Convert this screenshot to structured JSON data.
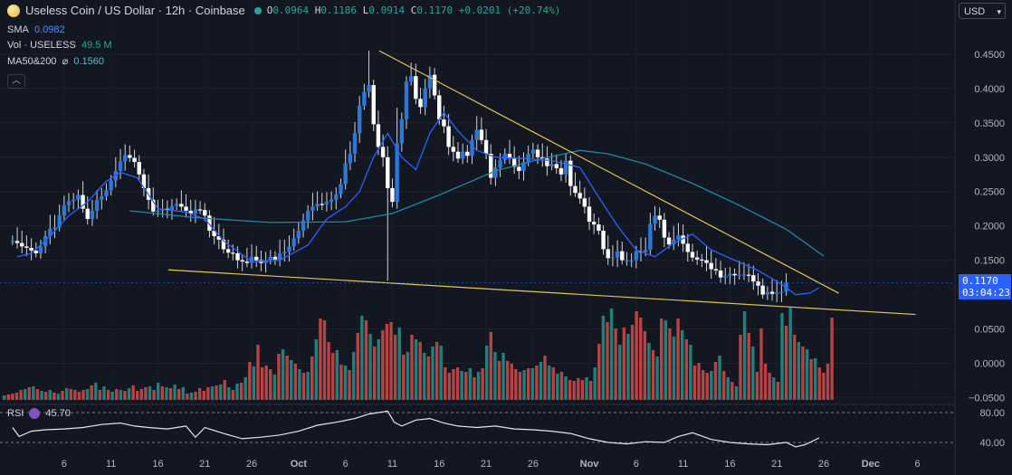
{
  "header": {
    "symbol": "Useless Coin / US Dollar · 12h · Coinbase",
    "o_label": "O",
    "o": "0.0964",
    "h_label": "H",
    "h": "0.1186",
    "l_label": "L",
    "l": "0.0914",
    "c_label": "C",
    "c": "0.1170",
    "change": "+0.0201 (+20.74%)"
  },
  "indicators": {
    "sma_label": "SMA",
    "sma_value": "0.0982",
    "vol_label": "Vol · USELESS",
    "vol_value": "49.5 M",
    "ma_label": "MA50&200",
    "ma_sym": "⌀",
    "ma_value": "0.1560",
    "collapse_icon": "chevron-up-icon"
  },
  "currency": "USD",
  "last_price": {
    "price": "0.1170",
    "countdown": "03:04:23"
  },
  "rsi": {
    "label": "RSI",
    "value": "45.70",
    "ticks": [
      "80.00",
      "40.00"
    ]
  },
  "colors": {
    "up": "#26a69a",
    "down": "#ef5350",
    "candle_body": "#ffffff",
    "sma": "#2962ff",
    "ma": "#1e88a8",
    "trendline": "#e3c74a",
    "background": "#131722"
  },
  "chart_data": {
    "type": "candlestick",
    "title": "Useless Coin / US Dollar · 12h · Coinbase",
    "ylim": [
      -0.05,
      0.475
    ],
    "y_ticks": [
      "0.4500",
      "0.4000",
      "0.3500",
      "0.3000",
      "0.2500",
      "0.2000",
      "0.1500",
      "0.0500",
      "0.0000",
      "−0.0500"
    ],
    "x_ticks": [
      "6",
      "11",
      "16",
      "21",
      "26",
      "Oct",
      "6",
      "11",
      "16",
      "21",
      "26",
      "Nov",
      "6",
      "11",
      "16",
      "21",
      "26",
      "Dec",
      "6"
    ],
    "x_tick_days": [
      6,
      11,
      16,
      21,
      26,
      31,
      36,
      41,
      46,
      51,
      56,
      62,
      67,
      72,
      77,
      82,
      87,
      92,
      97
    ],
    "note_x": "x = days since Sep 1",
    "candle_interval_days": 0.5,
    "close": [
      0.178,
      0.175,
      0.17,
      0.168,
      0.164,
      0.16,
      0.17,
      0.185,
      0.196,
      0.198,
      0.215,
      0.23,
      0.236,
      0.238,
      0.245,
      0.225,
      0.21,
      0.222,
      0.238,
      0.243,
      0.252,
      0.266,
      0.28,
      0.294,
      0.303,
      0.299,
      0.293,
      0.275,
      0.255,
      0.238,
      0.221,
      0.222,
      0.225,
      0.223,
      0.229,
      0.232,
      0.228,
      0.222,
      0.218,
      0.224,
      0.223,
      0.215,
      0.193,
      0.185,
      0.18,
      0.166,
      0.161,
      0.16,
      0.15,
      0.148,
      0.146,
      0.155,
      0.15,
      0.146,
      0.15,
      0.155,
      0.151,
      0.16,
      0.162,
      0.17,
      0.182,
      0.193,
      0.208,
      0.222,
      0.228,
      0.232,
      0.231,
      0.235,
      0.238,
      0.246,
      0.261,
      0.291,
      0.305,
      0.335,
      0.375,
      0.395,
      0.405,
      0.348,
      0.315,
      0.3,
      0.255,
      0.235,
      0.32,
      0.355,
      0.41,
      0.418,
      0.385,
      0.373,
      0.4,
      0.42,
      0.39,
      0.355,
      0.345,
      0.315,
      0.308,
      0.298,
      0.308,
      0.302,
      0.325,
      0.34,
      0.325,
      0.305,
      0.27,
      0.285,
      0.296,
      0.305,
      0.298,
      0.286,
      0.28,
      0.293,
      0.305,
      0.311,
      0.3,
      0.298,
      0.287,
      0.29,
      0.284,
      0.275,
      0.295,
      0.258,
      0.248,
      0.24,
      0.228,
      0.206,
      0.202,
      0.193,
      0.166,
      0.153,
      0.154,
      0.163,
      0.15,
      0.15,
      0.15,
      0.163,
      0.162,
      0.165,
      0.203,
      0.215,
      0.209,
      0.183,
      0.173,
      0.18,
      0.186,
      0.174,
      0.162,
      0.154,
      0.151,
      0.15,
      0.146,
      0.137,
      0.135,
      0.125,
      0.127,
      0.13,
      0.128,
      0.129,
      0.129,
      0.128,
      0.119,
      0.113,
      0.1,
      0.104,
      0.101,
      0.103,
      0.104,
      0.117
    ],
    "sma_series": [
      {
        "x": 1.0,
        "y": 0.155
      },
      {
        "x": 2.5,
        "y": 0.16
      },
      {
        "x": 4.5,
        "y": 0.185
      },
      {
        "x": 6.5,
        "y": 0.215
      },
      {
        "x": 8.5,
        "y": 0.235
      },
      {
        "x": 10.5,
        "y": 0.265
      },
      {
        "x": 12.0,
        "y": 0.278
      },
      {
        "x": 13.8,
        "y": 0.27
      },
      {
        "x": 16.0,
        "y": 0.225
      },
      {
        "x": 19.0,
        "y": 0.22
      },
      {
        "x": 21.0,
        "y": 0.21
      },
      {
        "x": 23.0,
        "y": 0.178
      },
      {
        "x": 26.0,
        "y": 0.148
      },
      {
        "x": 29.0,
        "y": 0.15
      },
      {
        "x": 32.0,
        "y": 0.172
      },
      {
        "x": 34.0,
        "y": 0.21
      },
      {
        "x": 36.0,
        "y": 0.228
      },
      {
        "x": 37.5,
        "y": 0.25
      },
      {
        "x": 39.0,
        "y": 0.3
      },
      {
        "x": 40.5,
        "y": 0.335
      },
      {
        "x": 42.0,
        "y": 0.3
      },
      {
        "x": 43.5,
        "y": 0.282
      },
      {
        "x": 45.0,
        "y": 0.335
      },
      {
        "x": 46.5,
        "y": 0.365
      },
      {
        "x": 48.0,
        "y": 0.338
      },
      {
        "x": 50.0,
        "y": 0.31
      },
      {
        "x": 52.0,
        "y": 0.3
      },
      {
        "x": 55.0,
        "y": 0.298
      },
      {
        "x": 58.0,
        "y": 0.295
      },
      {
        "x": 61.0,
        "y": 0.285
      },
      {
        "x": 63.0,
        "y": 0.242
      },
      {
        "x": 65.0,
        "y": 0.2
      },
      {
        "x": 67.0,
        "y": 0.165
      },
      {
        "x": 69.0,
        "y": 0.155
      },
      {
        "x": 71.0,
        "y": 0.175
      },
      {
        "x": 73.0,
        "y": 0.188
      },
      {
        "x": 75.0,
        "y": 0.165
      },
      {
        "x": 77.5,
        "y": 0.15
      },
      {
        "x": 80.0,
        "y": 0.135
      },
      {
        "x": 82.5,
        "y": 0.115
      },
      {
        "x": 84.0,
        "y": 0.1
      },
      {
        "x": 85.5,
        "y": 0.102
      },
      {
        "x": 86.5,
        "y": 0.11
      }
    ],
    "ma_series": [
      {
        "x": 13.0,
        "y": 0.222
      },
      {
        "x": 20.0,
        "y": 0.212
      },
      {
        "x": 28.0,
        "y": 0.205
      },
      {
        "x": 36.0,
        "y": 0.206
      },
      {
        "x": 41.0,
        "y": 0.218
      },
      {
        "x": 46.0,
        "y": 0.245
      },
      {
        "x": 52.0,
        "y": 0.28
      },
      {
        "x": 57.0,
        "y": 0.298
      },
      {
        "x": 61.0,
        "y": 0.31
      },
      {
        "x": 64.0,
        "y": 0.305
      },
      {
        "x": 68.0,
        "y": 0.29
      },
      {
        "x": 73.0,
        "y": 0.262
      },
      {
        "x": 78.0,
        "y": 0.23
      },
      {
        "x": 83.0,
        "y": 0.195
      },
      {
        "x": 87.0,
        "y": 0.156
      }
    ],
    "trendlines": [
      {
        "name": "upper",
        "from": {
          "x": 39.6,
          "y": 0.455
        },
        "to": {
          "x": 88.6,
          "y": 0.102
        }
      },
      {
        "name": "lower",
        "from": {
          "x": 17.1,
          "y": 0.136
        },
        "to": {
          "x": 96.8,
          "y": 0.071
        }
      }
    ],
    "volume_bar_height_pct": [
      5,
      6,
      7,
      8,
      11,
      12,
      14,
      15,
      12,
      10,
      9,
      11,
      8,
      7,
      10,
      13,
      12,
      11,
      9,
      11,
      12,
      16,
      19,
      11,
      15,
      11,
      9,
      12,
      11,
      10,
      13,
      16,
      10,
      12,
      14,
      15,
      11,
      19,
      15,
      14,
      13,
      17,
      12,
      14,
      7,
      8,
      9,
      13,
      10,
      14,
      15,
      16,
      17,
      22,
      14,
      11,
      18,
      19,
      25,
      42,
      37,
      61,
      36,
      38,
      34,
      28,
      51,
      56,
      49,
      44,
      40,
      34,
      30,
      31,
      48,
      67,
      90,
      88,
      64,
      52,
      55,
      39,
      38,
      33,
      53,
      74,
      93,
      88,
      73,
      59,
      67,
      77,
      84,
      86,
      72,
      80,
      50,
      53,
      72,
      67,
      64,
      52,
      48,
      59,
      64,
      60,
      36,
      30,
      34,
      36,
      32,
      31,
      35,
      25,
      31,
      35,
      60,
      75,
      53,
      43,
      52,
      43,
      40,
      34,
      31,
      33,
      35,
      35,
      38,
      42,
      49,
      38,
      36,
      29,
      31,
      26,
      22,
      21,
      24,
      22,
      25,
      21,
      36,
      62,
      93,
      86,
      101,
      79,
      61,
      80,
      73,
      83,
      98,
      91,
      76,
      63,
      55,
      48,
      90,
      88,
      79,
      70,
      90,
      77,
      67,
      61,
      38,
      41,
      33,
      30,
      32,
      42,
      49,
      32,
      25,
      20,
      15,
      72,
      98,
      74,
      59,
      31,
      79,
      40,
      30,
      25,
      20,
      96,
      82,
      102,
      72,
      64,
      59,
      56,
      45,
      46,
      36,
      30,
      40,
      91
    ],
    "rsi_series": [
      {
        "x": 0.5,
        "y": 60
      },
      {
        "x": 1.2,
        "y": 48
      },
      {
        "x": 2.5,
        "y": 55
      },
      {
        "x": 4.0,
        "y": 57
      },
      {
        "x": 6.0,
        "y": 58
      },
      {
        "x": 8.0,
        "y": 60
      },
      {
        "x": 10.0,
        "y": 64
      },
      {
        "x": 12.0,
        "y": 66
      },
      {
        "x": 13.5,
        "y": 62
      },
      {
        "x": 15.0,
        "y": 60
      },
      {
        "x": 17.0,
        "y": 58
      },
      {
        "x": 19.0,
        "y": 62
      },
      {
        "x": 20.0,
        "y": 47
      },
      {
        "x": 21.0,
        "y": 60
      },
      {
        "x": 23.0,
        "y": 52
      },
      {
        "x": 25.0,
        "y": 45
      },
      {
        "x": 27.0,
        "y": 47
      },
      {
        "x": 29.0,
        "y": 50
      },
      {
        "x": 31.0,
        "y": 55
      },
      {
        "x": 33.0,
        "y": 63
      },
      {
        "x": 35.0,
        "y": 67
      },
      {
        "x": 37.0,
        "y": 72
      },
      {
        "x": 38.5,
        "y": 78
      },
      {
        "x": 39.5,
        "y": 80
      },
      {
        "x": 40.5,
        "y": 82
      },
      {
        "x": 41.2,
        "y": 67
      },
      {
        "x": 42.0,
        "y": 62
      },
      {
        "x": 43.5,
        "y": 70
      },
      {
        "x": 45.0,
        "y": 72
      },
      {
        "x": 46.5,
        "y": 66
      },
      {
        "x": 48.0,
        "y": 62
      },
      {
        "x": 50.0,
        "y": 60
      },
      {
        "x": 52.0,
        "y": 62
      },
      {
        "x": 54.0,
        "y": 58
      },
      {
        "x": 56.0,
        "y": 57
      },
      {
        "x": 58.0,
        "y": 55
      },
      {
        "x": 60.0,
        "y": 52
      },
      {
        "x": 62.0,
        "y": 45
      },
      {
        "x": 64.0,
        "y": 40
      },
      {
        "x": 66.0,
        "y": 38
      },
      {
        "x": 68.0,
        "y": 41
      },
      {
        "x": 70.0,
        "y": 40
      },
      {
        "x": 71.5,
        "y": 48
      },
      {
        "x": 73.0,
        "y": 53
      },
      {
        "x": 75.0,
        "y": 44
      },
      {
        "x": 77.0,
        "y": 40
      },
      {
        "x": 79.0,
        "y": 38
      },
      {
        "x": 81.0,
        "y": 37
      },
      {
        "x": 83.0,
        "y": 40
      },
      {
        "x": 84.0,
        "y": 34
      },
      {
        "x": 85.0,
        "y": 37
      },
      {
        "x": 86.0,
        "y": 43
      },
      {
        "x": 86.5,
        "y": 46
      }
    ],
    "rsi_band": [
      40,
      80
    ],
    "grid": true
  }
}
